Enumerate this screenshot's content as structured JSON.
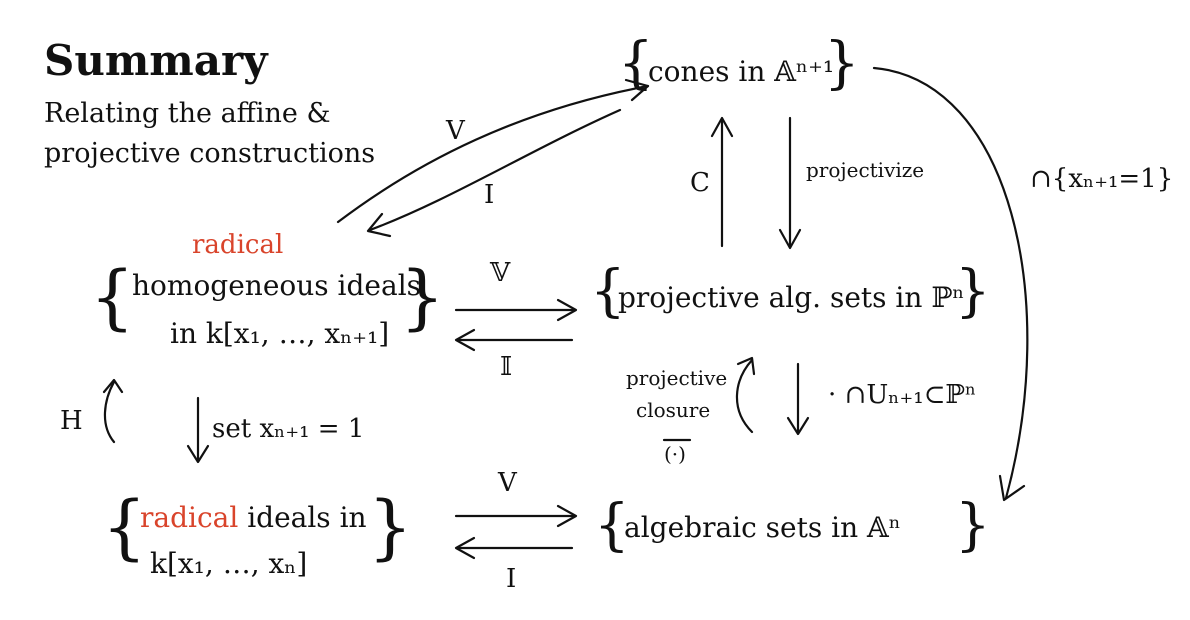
{
  "title": "Summary",
  "subtitle_lines": [
    "Relating the affine &",
    "projective constructions"
  ],
  "nodes": {
    "cones": "cones in 𝔸ⁿ⁺¹",
    "homogeneous_prefix": "radical",
    "homogeneous_line1": "homogeneous ideals",
    "homogeneous_line2": "in k[x₁, …, xₙ₊₁]",
    "projective": "projective alg. sets in ℙⁿ",
    "radical_prefix": "radical",
    "radical_line1_rest": " ideals in",
    "radical_line2": "k[x₁, …, xₙ]",
    "algebraic": "algebraic sets in 𝔸ⁿ"
  },
  "arrow_labels": {
    "V_cones": "V",
    "I_cones": "I",
    "C": "C",
    "projectivize": "projectivize",
    "intersect_x": "∩{xₙ₊₁=1}",
    "V_proj": "𝕍",
    "I_proj": "𝕀",
    "projective_closure_1": "projective",
    "projective_closure_2": "closure",
    "closure_symbol": "(·)",
    "intersect_U": "· ∩Uₙ₊₁⊂ℙⁿ",
    "H": "H",
    "set_x": "set xₙ₊₁ = 1",
    "V_aff": "V",
    "I_aff": "I"
  }
}
